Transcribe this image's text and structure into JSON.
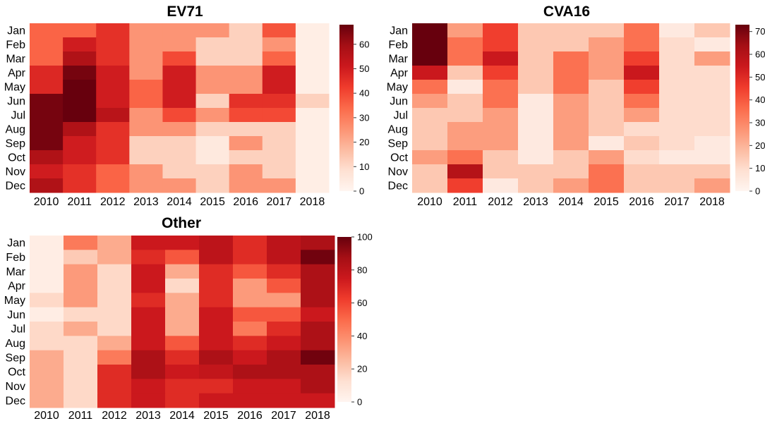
{
  "chart_data": [
    {
      "type": "heatmap",
      "title": "EV71",
      "x": [
        "2010",
        "2011",
        "2012",
        "2013",
        "2014",
        "2015",
        "2016",
        "2017",
        "2018"
      ],
      "y": [
        "Jan",
        "Feb",
        "Mar",
        "Apr",
        "May",
        "Jun",
        "Jul",
        "Aug",
        "Sep",
        "Oct",
        "Nov",
        "Dec"
      ],
      "vmin": 0,
      "vmax": 68,
      "colorbar_ticks": [
        "0",
        "10",
        "20",
        "30",
        "40",
        "50",
        "60"
      ],
      "z": [
        [
          35,
          35,
          45,
          25,
          25,
          25,
          12,
          38,
          3
        ],
        [
          35,
          50,
          45,
          25,
          25,
          12,
          12,
          25,
          3
        ],
        [
          35,
          57,
          45,
          25,
          40,
          12,
          12,
          35,
          3
        ],
        [
          47,
          66,
          50,
          25,
          50,
          25,
          25,
          50,
          3
        ],
        [
          47,
          68,
          50,
          35,
          50,
          25,
          25,
          50,
          3
        ],
        [
          66,
          68,
          50,
          35,
          50,
          12,
          45,
          45,
          12
        ],
        [
          66,
          68,
          55,
          25,
          40,
          25,
          40,
          40,
          3
        ],
        [
          66,
          57,
          45,
          25,
          25,
          12,
          12,
          12,
          3
        ],
        [
          66,
          50,
          45,
          12,
          12,
          5,
          25,
          12,
          3
        ],
        [
          57,
          50,
          45,
          12,
          12,
          5,
          12,
          12,
          3
        ],
        [
          50,
          45,
          35,
          25,
          12,
          12,
          25,
          12,
          3
        ],
        [
          57,
          45,
          35,
          25,
          25,
          12,
          25,
          25,
          3
        ]
      ]
    },
    {
      "type": "heatmap",
      "title": "CVA16",
      "x": [
        "2010",
        "2011",
        "2012",
        "2013",
        "2014",
        "2015",
        "2016",
        "2017",
        "2018"
      ],
      "y": [
        "Jan",
        "Feb",
        "Mar",
        "Apr",
        "May",
        "Jun",
        "Jul",
        "Aug",
        "Sep",
        "Oct",
        "Nov",
        "Dec"
      ],
      "vmin": 0,
      "vmax": 73,
      "colorbar_ticks": [
        "0",
        "10",
        "20",
        "30",
        "40",
        "50",
        "60",
        "70"
      ],
      "z": [
        [
          73,
          25,
          45,
          15,
          15,
          15,
          35,
          5,
          15
        ],
        [
          73,
          35,
          45,
          15,
          15,
          25,
          35,
          10,
          5
        ],
        [
          73,
          35,
          55,
          15,
          35,
          25,
          45,
          10,
          25
        ],
        [
          55,
          15,
          45,
          15,
          35,
          25,
          55,
          10,
          10
        ],
        [
          35,
          5,
          35,
          15,
          35,
          15,
          45,
          10,
          10
        ],
        [
          25,
          15,
          35,
          5,
          25,
          15,
          35,
          10,
          10
        ],
        [
          15,
          15,
          25,
          5,
          25,
          15,
          25,
          10,
          10
        ],
        [
          15,
          25,
          25,
          5,
          25,
          15,
          10,
          10,
          10
        ],
        [
          15,
          25,
          25,
          5,
          25,
          5,
          15,
          10,
          5
        ],
        [
          25,
          35,
          15,
          5,
          15,
          25,
          10,
          5,
          5
        ],
        [
          15,
          60,
          15,
          15,
          15,
          35,
          15,
          15,
          15
        ],
        [
          15,
          45,
          5,
          15,
          25,
          35,
          15,
          15,
          25
        ]
      ]
    },
    {
      "type": "heatmap",
      "title": "Other",
      "x": [
        "2010",
        "2011",
        "2012",
        "2013",
        "2014",
        "2015",
        "2016",
        "2017",
        "2018"
      ],
      "y": [
        "Jan",
        "Feb",
        "Mar",
        "Apr",
        "May",
        "Jun",
        "Jul",
        "Aug",
        "Sep",
        "Oct",
        "Nov",
        "Dec"
      ],
      "vmin": 0,
      "vmax": 100,
      "colorbar_ticks": [
        "0",
        "20",
        "40",
        "60",
        "80",
        "100"
      ],
      "z": [
        [
          5,
          45,
          30,
          75,
          75,
          80,
          68,
          80,
          85
        ],
        [
          5,
          20,
          30,
          68,
          55,
          80,
          68,
          80,
          98
        ],
        [
          5,
          35,
          15,
          75,
          30,
          68,
          55,
          68,
          85
        ],
        [
          5,
          35,
          15,
          75,
          15,
          68,
          35,
          55,
          85
        ],
        [
          15,
          35,
          15,
          68,
          30,
          68,
          35,
          35,
          85
        ],
        [
          5,
          15,
          15,
          75,
          30,
          75,
          55,
          55,
          75
        ],
        [
          15,
          30,
          15,
          75,
          30,
          75,
          45,
          68,
          85
        ],
        [
          15,
          15,
          30,
          75,
          55,
          75,
          68,
          75,
          85
        ],
        [
          30,
          15,
          45,
          85,
          68,
          85,
          75,
          85,
          98
        ],
        [
          30,
          15,
          68,
          85,
          75,
          78,
          85,
          85,
          85
        ],
        [
          30,
          15,
          68,
          75,
          68,
          68,
          75,
          75,
          85
        ],
        [
          30,
          15,
          68,
          75,
          68,
          75,
          75,
          75,
          75
        ]
      ]
    }
  ]
}
